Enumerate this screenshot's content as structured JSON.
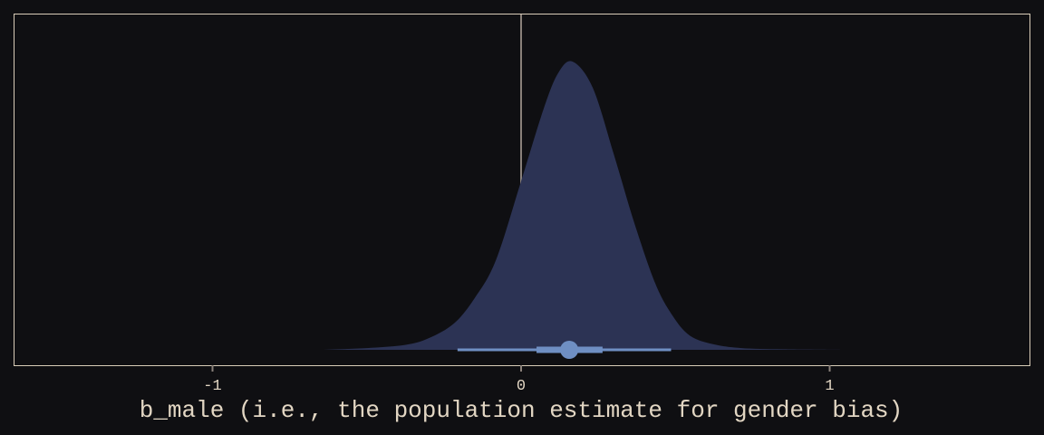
{
  "chart_data": {
    "type": "area",
    "subtype": "halfeye density with point interval",
    "xlabel": "b_male (i.e., the population estimate for gender bias)",
    "ylabel": "",
    "xlim": [
      -1.645,
      1.65
    ],
    "x_ticks": [
      -1,
      0,
      1
    ],
    "x_tick_labels": [
      "-1",
      "0",
      "1"
    ],
    "y_ticks": [],
    "grid": false,
    "reference_line_x": 0,
    "density": {
      "x": [
        -0.646,
        -0.5,
        -0.376,
        -0.3,
        -0.217,
        -0.15,
        -0.082,
        0,
        0.073,
        0.12,
        0.167,
        0.232,
        0.3,
        0.367,
        0.435,
        0.49,
        0.546,
        0.62,
        0.714,
        0.85,
        1.04
      ],
      "y_relative": [
        0,
        0.006,
        0.017,
        0.04,
        0.092,
        0.18,
        0.31,
        0.585,
        0.836,
        0.96,
        1.0,
        0.91,
        0.68,
        0.44,
        0.23,
        0.12,
        0.05,
        0.02,
        0.006,
        0.002,
        0
      ]
    },
    "point_estimate": 0.156,
    "interval_inner": [
      0.05,
      0.264
    ],
    "interval_outer": [
      -0.206,
      0.486
    ],
    "colors": {
      "background": "#0f0f12",
      "density_fill": "#2c3354",
      "interval": "#6f8fc3",
      "reference_line": "#8a817a",
      "axis_text": "#e2d6c3",
      "panel_border": "#d8ccb8"
    }
  }
}
